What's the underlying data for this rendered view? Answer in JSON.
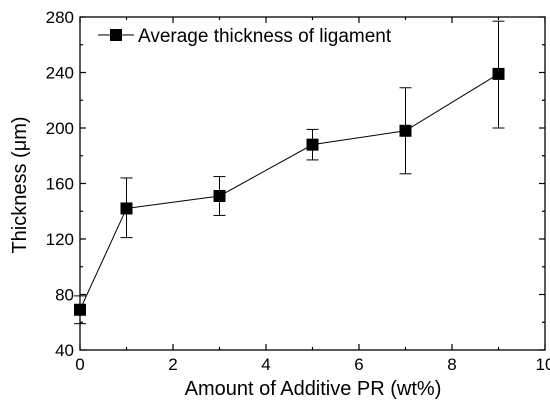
{
  "chart_data": {
    "type": "line",
    "xlabel": "Amount of Additive PR (wt%)",
    "ylabel": "Thickness (μm)",
    "xlim": [
      0,
      10
    ],
    "ylim": [
      40,
      280
    ],
    "xticks": [
      0,
      2,
      4,
      6,
      8,
      10
    ],
    "yticks": [
      40,
      80,
      120,
      160,
      200,
      240,
      280
    ],
    "grid": false,
    "legend_position": "top-left",
    "series": [
      {
        "name": "Average thickness of ligament",
        "marker": "square",
        "color": "#000000",
        "points": [
          {
            "x": 0,
            "y": 69,
            "err_low": 59,
            "err_high": 79
          },
          {
            "x": 1,
            "y": 142,
            "err_low": 121,
            "err_high": 164
          },
          {
            "x": 3,
            "y": 151,
            "err_low": 137,
            "err_high": 165
          },
          {
            "x": 5,
            "y": 188,
            "err_low": 177,
            "err_high": 199
          },
          {
            "x": 7,
            "y": 198,
            "err_low": 167,
            "err_high": 229
          },
          {
            "x": 9,
            "y": 239,
            "err_low": 200,
            "err_high": 277
          }
        ]
      }
    ]
  }
}
